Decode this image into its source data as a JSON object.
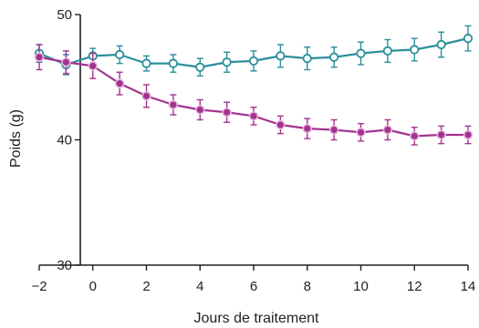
{
  "chart_data": {
    "type": "line",
    "title": "",
    "xlabel": "Jours de traitement",
    "ylabel": "Poids (g)",
    "xlim": [
      -2,
      14
    ],
    "ylim": [
      30,
      50
    ],
    "xticks": [
      -2,
      0,
      2,
      4,
      6,
      8,
      10,
      12,
      14
    ],
    "yticks": [
      30,
      40,
      50
    ],
    "xtick_labels": [
      "-2",
      "0",
      "2",
      "4",
      "6",
      "8",
      "10",
      "12",
      "14"
    ],
    "ytick_labels": [
      "30",
      "40",
      "50"
    ],
    "grid": false,
    "legend": "none",
    "x": [
      -2,
      -1,
      0,
      1,
      2,
      3,
      4,
      5,
      6,
      7,
      8,
      9,
      10,
      11,
      12,
      13,
      14
    ],
    "series": [
      {
        "color": "#2a8f9c",
        "marker": "open-circle",
        "values": [
          46.9,
          46.0,
          46.7,
          46.8,
          46.1,
          46.1,
          45.8,
          46.2,
          46.3,
          46.7,
          46.5,
          46.6,
          46.9,
          47.1,
          47.2,
          47.6,
          48.1
        ],
        "errors": [
          0.7,
          0.8,
          0.6,
          0.7,
          0.6,
          0.7,
          0.7,
          0.8,
          0.8,
          0.9,
          0.9,
          0.8,
          0.9,
          0.9,
          0.9,
          1.0,
          1.0
        ]
      },
      {
        "color": "#a2338f",
        "marker": "filled-circle",
        "values": [
          46.6,
          46.2,
          45.9,
          44.5,
          43.5,
          42.8,
          42.4,
          42.2,
          41.9,
          41.2,
          40.9,
          40.8,
          40.6,
          40.8,
          40.3,
          40.4,
          40.4
        ],
        "errors": [
          1.0,
          0.9,
          1.0,
          0.9,
          0.9,
          0.8,
          0.8,
          0.8,
          0.7,
          0.7,
          0.8,
          0.8,
          0.7,
          0.8,
          0.7,
          0.7,
          0.7
        ]
      }
    ]
  }
}
